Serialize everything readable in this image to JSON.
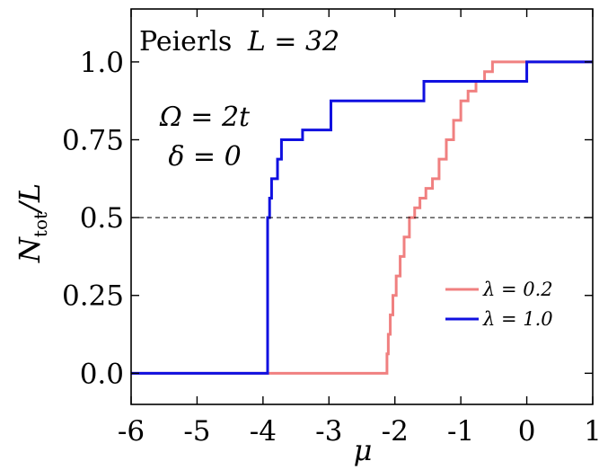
{
  "chart_data": {
    "type": "line",
    "step": true,
    "title": "Peierls L = 32",
    "title_parts": {
      "prefix": "Peierls",
      "math": "L = 32"
    },
    "annotations": [
      "Ω = 2t",
      "δ = 0"
    ],
    "xlabel": "μ",
    "ylabel": "N_tot/L",
    "ylabel_parts": {
      "main": "N",
      "sub": "tot",
      "rest": "/L"
    },
    "xlim": [
      -6,
      1
    ],
    "ylim": [
      -0.1,
      1.17
    ],
    "xticks": [
      -6,
      -5,
      -4,
      -3,
      -2,
      -1,
      0,
      1
    ],
    "xtick_labels": [
      "-6",
      "-5",
      "-4",
      "-3",
      "-2",
      "-1",
      "0",
      "1"
    ],
    "yticks": [
      0.0,
      0.25,
      0.5,
      0.75,
      1.0
    ],
    "ytick_labels": [
      "0.0",
      "0.25",
      "0.5",
      "0.75",
      "1.0"
    ],
    "reference_line": {
      "y": 0.5,
      "style": "dashed",
      "color": "#000000"
    },
    "legend_position": "center-right",
    "grid": false,
    "series": [
      {
        "name": "λ = 0.2",
        "color": "#f08080",
        "x": [
          -6,
          -2.12,
          -2.1,
          -2.07,
          -2.03,
          -1.98,
          -1.92,
          -1.86,
          -1.78,
          -1.7,
          -1.62,
          -1.53,
          -1.43,
          -1.33,
          -1.22,
          -1.11,
          -1.0,
          -0.89,
          -0.77,
          -0.64,
          -0.52,
          -0.4,
          1
        ],
        "y": [
          0.0,
          0.0625,
          0.125,
          0.1875,
          0.25,
          0.3125,
          0.375,
          0.4375,
          0.5,
          0.53125,
          0.5625,
          0.59375,
          0.625,
          0.6875,
          0.75,
          0.8125,
          0.875,
          0.90625,
          0.9375,
          0.96875,
          1.0,
          1.0,
          1.0
        ]
      },
      {
        "name": "λ = 1.0",
        "color": "#1010e0",
        "x": [
          -6,
          -3.93,
          -3.9,
          -3.87,
          -3.78,
          -3.72,
          -3.46,
          -3.4,
          -3.35,
          -2.97,
          -2.08,
          -1.56,
          0.0,
          1
        ],
        "y": [
          0.0,
          0.5,
          0.5625,
          0.625,
          0.6875,
          0.75,
          0.75,
          0.78125,
          0.78125,
          0.875,
          0.875,
          0.9375,
          1.0,
          1.0
        ]
      }
    ]
  }
}
